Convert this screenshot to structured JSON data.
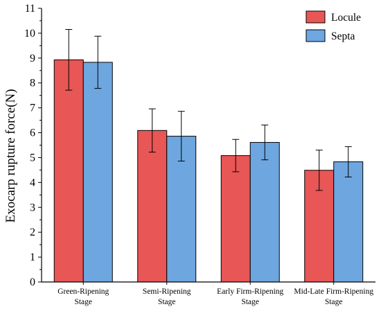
{
  "chart_data": {
    "type": "bar",
    "title": "",
    "xlabel": "",
    "ylabel": "Exocarp rupture force(N)",
    "ylim": [
      0,
      11
    ],
    "yticks": [
      0,
      1,
      2,
      3,
      4,
      5,
      6,
      7,
      8,
      9,
      10,
      11
    ],
    "grid": false,
    "legend_position": "top-right",
    "categories": [
      [
        "Green-Ripening",
        "Stage"
      ],
      [
        "Semi-Ripening",
        "Stage"
      ],
      [
        "Early Firm-Ripening",
        "Stage"
      ],
      [
        "Mid-Late Firm-Ripening",
        "Stage"
      ]
    ],
    "series": [
      {
        "name": "Locule",
        "color": "#E85656",
        "values": [
          8.93,
          6.09,
          5.08,
          4.49
        ],
        "errors": [
          1.22,
          0.87,
          0.65,
          0.81
        ]
      },
      {
        "name": "Septa",
        "color": "#6EA6DF",
        "values": [
          8.83,
          5.86,
          5.61,
          4.83
        ],
        "errors": [
          1.05,
          1.0,
          0.7,
          0.61
        ]
      }
    ]
  }
}
